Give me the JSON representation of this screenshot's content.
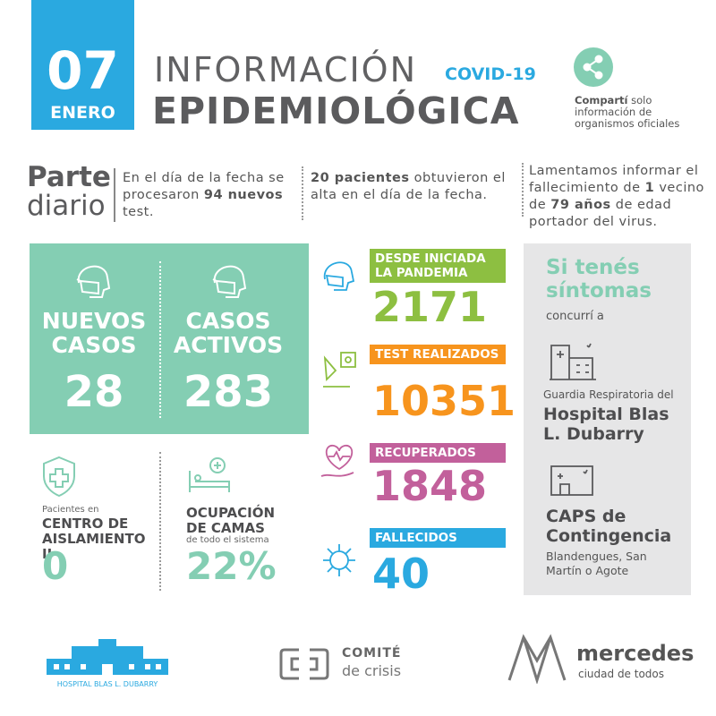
{
  "header": {
    "day": "07",
    "month": "ENERO",
    "title_top": "INFORMACIÓN",
    "tag": "COVID-19",
    "title_bottom": "EPIDEMIOLÓGICA",
    "share": [
      {
        "text": "Compartí",
        "bold": true
      },
      {
        "text": " solo información de organismos oficiales",
        "bold": false
      }
    ]
  },
  "daily": {
    "label_top": "Parte",
    "label_bottom": "diario",
    "notes": [
      [
        {
          "text": "En el día de la fecha se procesaron ",
          "bold": false
        },
        {
          "text": "94 nuevos",
          "bold": true
        },
        {
          "text": " test.",
          "bold": false
        }
      ],
      [
        {
          "text": "20 pacientes",
          "bold": true
        },
        {
          "text": " obtuvieron el alta en el día de la fecha.",
          "bold": false
        }
      ],
      [
        {
          "text": "Lamentamos informar el fallecimiento de ",
          "bold": false
        },
        {
          "text": "1",
          "bold": true
        },
        {
          "text": " vecino de ",
          "bold": false
        },
        {
          "text": "79 años",
          "bold": true
        },
        {
          "text": " de edad portador del virus.",
          "bold": false
        }
      ]
    ]
  },
  "cases": [
    {
      "label": "NUEVOS CASOS",
      "value": 28
    },
    {
      "label": "CASOS ACTIVOS",
      "value": 283
    }
  ],
  "isolation": {
    "intro": "Pacientes en",
    "label": "CENTRO DE AISLAMIENTO II",
    "value": 0
  },
  "beds": {
    "label": "OCUPACIÓN DE CAMAS",
    "note": "de todo el sistema",
    "value": "22%"
  },
  "totals": [
    {
      "label": "DESDE INICIADA LA PANDEMIA",
      "value": 2171,
      "color": "#8dbf41"
    },
    {
      "label": "TEST REALIZADOS",
      "value": 10351,
      "color": "#f7941d"
    },
    {
      "label": "RECUPERADOS",
      "value": 1848,
      "color": "#c2609b"
    },
    {
      "label": "FALLECIDOS",
      "value": 40,
      "color": "#2aa9e0"
    }
  ],
  "care": {
    "title": "Si tenés síntomas",
    "intro": "concurrí a",
    "places": [
      {
        "intro": "Guardia Respiratoria del",
        "name": "Hospital Blas L. Dubarry"
      },
      {
        "name": "CAPS de Contingencia",
        "note": "Blandengues, San Martín o Agote"
      }
    ]
  },
  "footer": {
    "hospital": "HOSPITAL BLAS L. DUBARRY",
    "committee_top": "COMITÉ",
    "committee_bottom": "de crisis",
    "city": "mercedes",
    "city_tagline": "ciudad de todos"
  }
}
